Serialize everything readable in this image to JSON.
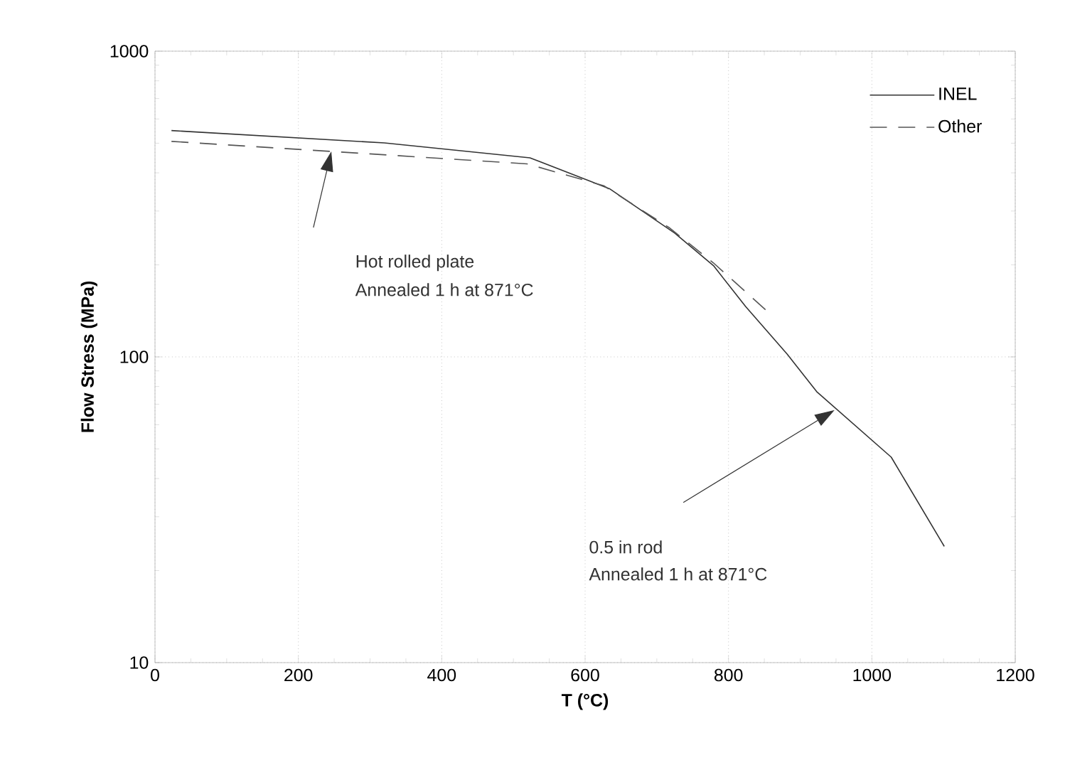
{
  "chart_data": {
    "type": "line",
    "xlabel": "T  (°C)",
    "ylabel": "Flow  Stress  (MPa)",
    "log": "y",
    "xlim": [
      0,
      1200
    ],
    "xticks": [
      0,
      200,
      400,
      600,
      800,
      1000,
      1200
    ],
    "ylim": [
      10,
      1000
    ],
    "yticks": [
      10,
      100,
      1000
    ],
    "grid": true,
    "legend": "top right",
    "marker": "none",
    "series": [
      {
        "name": "INEL",
        "color": "#333333",
        "line_style": "solid",
        "x": [
          23,
          320,
          523,
          634,
          725,
          779,
          824,
          882,
          923,
          1027,
          1101
        ],
        "values": [
          550,
          501,
          448,
          355,
          254,
          199,
          146,
          102,
          77,
          47,
          24
        ]
      },
      {
        "name": "Other",
        "color": "#555555",
        "line_style": "dashed",
        "x": [
          23,
          246,
          519,
          626,
          717,
          779,
          857
        ],
        "values": [
          507,
          470,
          428,
          363,
          265,
          203,
          139
        ]
      }
    ],
    "annotations": [
      "Hot rolled plate",
      "Annealed 1 h at 871°C",
      "0.5 in rod",
      "Annealed 1 h at 871°C"
    ]
  }
}
